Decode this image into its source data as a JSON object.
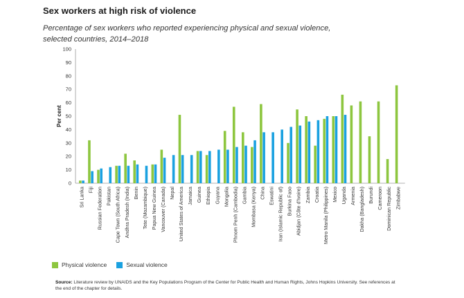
{
  "header": {
    "title": "Sex workers at high risk of violence",
    "subtitle": "Percentage of sex workers who reported experiencing physical and sexual violence, selected countries, 2014–2018"
  },
  "legend": [
    {
      "label": "Physical violence",
      "color": "#8dc63f"
    },
    {
      "label": "Sexual violence",
      "color": "#1aa1e0"
    }
  ],
  "source": {
    "label": "Source:",
    "text": "Literature review by UNAIDS and the Key Populations Program of the Center for Public Health and Human Rights, Johns Hopkins University. See references at the end of the chapter for details."
  },
  "chart_data": {
    "type": "bar",
    "title": "Sex workers at high risk of violence",
    "subtitle": "Percentage of sex workers who reported experiencing physical and sexual violence, selected countries, 2014–2018",
    "xlabel": "",
    "ylabel": "Per cent",
    "ylim": [
      0,
      100
    ],
    "yticks": [
      0,
      10,
      20,
      30,
      40,
      50,
      60,
      70,
      80,
      90,
      100
    ],
    "grid": false,
    "legend_position": "bottom-left",
    "categories": [
      "Sri Lanka",
      "Fiji",
      "Russian Federation",
      "Pakistan",
      "Cape Town (South Africa)",
      "Andhra Pradesh (India)",
      "Benin",
      "Tete (Mozambique)",
      "Papua New Guinea",
      "Vancouver (Canada)",
      "Nepal",
      "United States of America",
      "Jamaica",
      "Guinea",
      "Ethiopia",
      "Guyana",
      "Mongolia",
      "Phnom Penh (Cambodia)",
      "Gambia",
      "Mombasa (Kenya)",
      "China",
      "Eswatini",
      "Iran (Islamic Republic of)",
      "Burkina Faso",
      "Abidjan (Côte d'Ivoire)",
      "Zambia",
      "Croatia",
      "Metro Manila (Philippines)",
      "Mexico",
      "Uganda",
      "Armenia",
      "Dakha (Bangladesh)",
      "Burundi",
      "Cameroon",
      "Dominican Republic",
      "Zimbabwe"
    ],
    "series": [
      {
        "name": "Physical violence",
        "color": "#8dc63f",
        "values": [
          2,
          32,
          10,
          null,
          13,
          22,
          17,
          null,
          14,
          25,
          null,
          51,
          null,
          24,
          21,
          null,
          39,
          57,
          38,
          27,
          59,
          null,
          null,
          30,
          55,
          50,
          28,
          48,
          50,
          66,
          58,
          61,
          35,
          61,
          18,
          73
        ]
      },
      {
        "name": "Sexual violence",
        "color": "#1aa1e0",
        "values": [
          2,
          9,
          11,
          12,
          13,
          13,
          14,
          13,
          14,
          19,
          21,
          21,
          21,
          24,
          24,
          25,
          25,
          27,
          28,
          32,
          38,
          38,
          40,
          42,
          43,
          46,
          47,
          50,
          50,
          51,
          null,
          null,
          null,
          null,
          null,
          null
        ]
      }
    ]
  }
}
